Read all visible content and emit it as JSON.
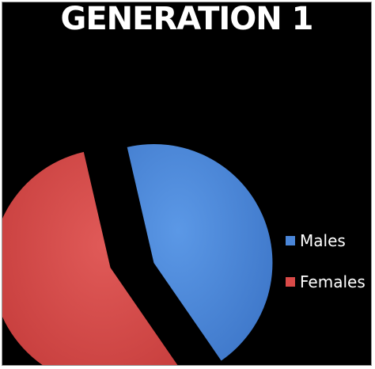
{
  "chart_data": {
    "type": "pie",
    "title": "GENERATION 1",
    "categories": [
      "Males",
      "Females"
    ],
    "values": [
      44,
      56
    ],
    "colors": [
      "#4a86d8",
      "#d94a48"
    ],
    "legend_position": "right",
    "exploded": true
  }
}
